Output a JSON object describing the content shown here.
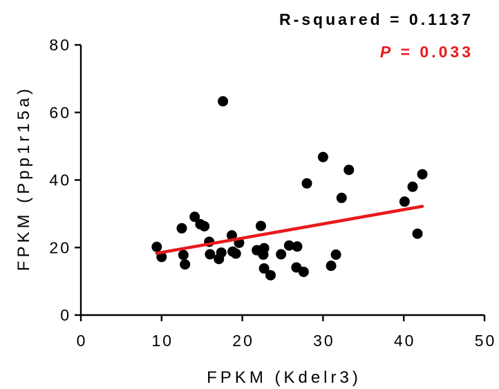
{
  "chart_data": {
    "type": "scatter",
    "title": "",
    "xlabel": "FPKM (Kdelr3)",
    "ylabel": "FPKM (Ppp1r15a)",
    "xlim": [
      0,
      50
    ],
    "ylim": [
      0,
      80
    ],
    "x_ticks": [
      0,
      10,
      20,
      30,
      40,
      50
    ],
    "y_ticks": [
      0,
      20,
      40,
      60,
      80
    ],
    "annotations": {
      "r_squared": "R-squared = 0.1137",
      "p_label": "P",
      "p_value_text": " = 0.033"
    },
    "series": [
      {
        "points": [
          {
            "x": 9.4,
            "y": 20.2
          },
          {
            "x": 10.0,
            "y": 17.2
          },
          {
            "x": 12.5,
            "y": 25.7
          },
          {
            "x": 12.7,
            "y": 17.8
          },
          {
            "x": 12.9,
            "y": 15.0
          },
          {
            "x": 14.1,
            "y": 29.1
          },
          {
            "x": 14.8,
            "y": 26.9
          },
          {
            "x": 15.3,
            "y": 26.3
          },
          {
            "x": 15.9,
            "y": 21.7
          },
          {
            "x": 16.0,
            "y": 18.0
          },
          {
            "x": 17.1,
            "y": 16.6
          },
          {
            "x": 17.4,
            "y": 18.5
          },
          {
            "x": 17.6,
            "y": 63.3
          },
          {
            "x": 18.7,
            "y": 23.6
          },
          {
            "x": 18.8,
            "y": 18.8
          },
          {
            "x": 19.2,
            "y": 18.2
          },
          {
            "x": 19.6,
            "y": 21.4
          },
          {
            "x": 21.8,
            "y": 19.2
          },
          {
            "x": 22.3,
            "y": 26.4
          },
          {
            "x": 22.6,
            "y": 17.9
          },
          {
            "x": 22.7,
            "y": 19.8
          },
          {
            "x": 22.7,
            "y": 13.8
          },
          {
            "x": 23.5,
            "y": 11.8
          },
          {
            "x": 24.8,
            "y": 18.0
          },
          {
            "x": 25.8,
            "y": 20.6
          },
          {
            "x": 26.7,
            "y": 14.1
          },
          {
            "x": 26.8,
            "y": 20.3
          },
          {
            "x": 27.6,
            "y": 12.8
          },
          {
            "x": 28.0,
            "y": 39.0
          },
          {
            "x": 30.0,
            "y": 46.8
          },
          {
            "x": 31.0,
            "y": 14.6
          },
          {
            "x": 31.6,
            "y": 17.9
          },
          {
            "x": 32.3,
            "y": 34.7
          },
          {
            "x": 33.2,
            "y": 43.0
          },
          {
            "x": 40.1,
            "y": 33.6
          },
          {
            "x": 41.1,
            "y": 38.0
          },
          {
            "x": 41.7,
            "y": 24.1
          },
          {
            "x": 42.3,
            "y": 41.7
          }
        ]
      }
    ],
    "fit_line": {
      "x": [
        9.4,
        42.3
      ],
      "y": [
        18.3,
        32.2
      ]
    },
    "colors": {
      "points": "#000000",
      "fit_line": "#e8191c",
      "p_value": "#e8191c"
    },
    "grid": false
  }
}
